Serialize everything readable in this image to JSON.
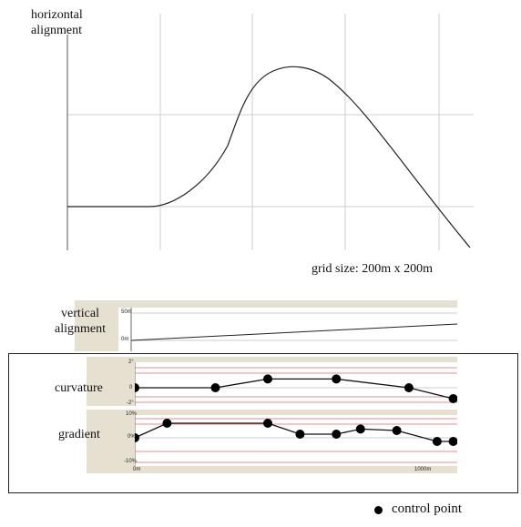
{
  "horizontal": {
    "title_line1": "horizontal",
    "title_line2": "alignment",
    "grid_label": "grid size: 200m x 200m"
  },
  "vertical": {
    "title_line1": "vertical",
    "title_line2": "alignment",
    "tick_top": "50m",
    "tick_bottom": "0m"
  },
  "curvature": {
    "label": "curvature",
    "tick_top": "2°",
    "tick_mid": "0",
    "tick_bottom": "-2°",
    "points": [
      [
        0,
        0
      ],
      [
        200,
        0
      ],
      [
        330,
        0.8
      ],
      [
        500,
        0.8
      ],
      [
        680,
        0
      ],
      [
        790,
        -1
      ]
    ]
  },
  "gradient": {
    "label": "gradient",
    "tick_top": "10%",
    "tick_mid": "0%",
    "tick_bottom": "-10%",
    "points": [
      [
        0,
        0
      ],
      [
        80,
        4
      ],
      [
        330,
        4
      ],
      [
        410,
        1
      ],
      [
        500,
        1
      ],
      [
        560,
        2.4
      ],
      [
        650,
        2
      ],
      [
        750,
        -1
      ],
      [
        790,
        -1
      ]
    ]
  },
  "x_axis": {
    "start": "0m",
    "end": "1000m"
  },
  "legend": {
    "label": "control point"
  }
}
